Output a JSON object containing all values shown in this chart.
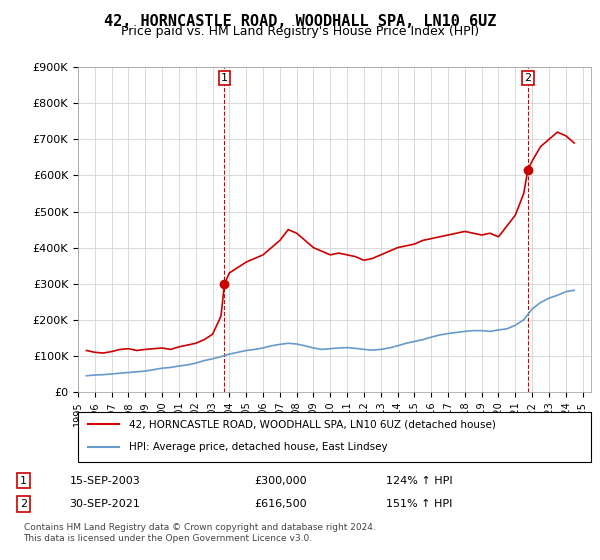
{
  "title": "42, HORNCASTLE ROAD, WOODHALL SPA, LN10 6UZ",
  "subtitle": "Price paid vs. HM Land Registry's House Price Index (HPI)",
  "legend_label_red": "42, HORNCASTLE ROAD, WOODHALL SPA, LN10 6UZ (detached house)",
  "legend_label_blue": "HPI: Average price, detached house, East Lindsey",
  "annotation1_box": "1",
  "annotation1_date": "15-SEP-2003",
  "annotation1_price": "£300,000",
  "annotation1_hpi": "124% ↑ HPI",
  "annotation2_box": "2",
  "annotation2_date": "30-SEP-2021",
  "annotation2_price": "£616,500",
  "annotation2_hpi": "151% ↑ HPI",
  "footnote": "Contains HM Land Registry data © Crown copyright and database right 2024.\nThis data is licensed under the Open Government Licence v3.0.",
  "ylim": [
    0,
    900000
  ],
  "yticks": [
    0,
    100000,
    200000,
    300000,
    400000,
    500000,
    600000,
    700000,
    800000,
    900000
  ],
  "red_color": "#cc0000",
  "blue_color": "#6699cc",
  "vline_color": "#cc0000",
  "background_color": "#ffffff",
  "grid_color": "#cccccc",
  "purchase1_year": 2003.71,
  "purchase1_value": 300000,
  "purchase2_year": 2021.75,
  "purchase2_value": 616500,
  "red_x": [
    1995.5,
    1996.0,
    1996.5,
    1997.0,
    1997.5,
    1998.0,
    1998.5,
    1999.0,
    1999.5,
    2000.0,
    2000.5,
    2001.0,
    2001.5,
    2002.0,
    2002.5,
    2003.0,
    2003.5,
    2003.71,
    2004.0,
    2004.5,
    2005.0,
    2005.5,
    2006.0,
    2006.5,
    2007.0,
    2007.5,
    2008.0,
    2008.5,
    2009.0,
    2009.5,
    2010.0,
    2010.5,
    2011.0,
    2011.5,
    2012.0,
    2012.5,
    2013.0,
    2013.5,
    2014.0,
    2014.5,
    2015.0,
    2015.5,
    2016.0,
    2016.5,
    2017.0,
    2017.5,
    2018.0,
    2018.5,
    2019.0,
    2019.5,
    2020.0,
    2020.5,
    2021.0,
    2021.5,
    2021.75,
    2022.0,
    2022.5,
    2023.0,
    2023.5,
    2024.0,
    2024.5
  ],
  "red_y": [
    115000,
    110000,
    108000,
    112000,
    118000,
    120000,
    115000,
    118000,
    120000,
    122000,
    118000,
    125000,
    130000,
    135000,
    145000,
    160000,
    210000,
    300000,
    330000,
    345000,
    360000,
    370000,
    380000,
    400000,
    420000,
    450000,
    440000,
    420000,
    400000,
    390000,
    380000,
    385000,
    380000,
    375000,
    365000,
    370000,
    380000,
    390000,
    400000,
    405000,
    410000,
    420000,
    425000,
    430000,
    435000,
    440000,
    445000,
    440000,
    435000,
    440000,
    430000,
    460000,
    490000,
    550000,
    616500,
    640000,
    680000,
    700000,
    720000,
    710000,
    690000
  ],
  "blue_x": [
    1995.5,
    1996.0,
    1996.5,
    1997.0,
    1997.5,
    1998.0,
    1998.5,
    1999.0,
    1999.5,
    2000.0,
    2000.5,
    2001.0,
    2001.5,
    2002.0,
    2002.5,
    2003.0,
    2003.5,
    2004.0,
    2004.5,
    2005.0,
    2005.5,
    2006.0,
    2006.5,
    2007.0,
    2007.5,
    2008.0,
    2008.5,
    2009.0,
    2009.5,
    2010.0,
    2010.5,
    2011.0,
    2011.5,
    2012.0,
    2012.5,
    2013.0,
    2013.5,
    2014.0,
    2014.5,
    2015.0,
    2015.5,
    2016.0,
    2016.5,
    2017.0,
    2017.5,
    2018.0,
    2018.5,
    2019.0,
    2019.5,
    2020.0,
    2020.5,
    2021.0,
    2021.5,
    2022.0,
    2022.5,
    2023.0,
    2023.5,
    2024.0,
    2024.5
  ],
  "blue_y": [
    45000,
    47000,
    48000,
    50000,
    52000,
    54000,
    56000,
    58000,
    62000,
    66000,
    68000,
    72000,
    75000,
    80000,
    87000,
    92000,
    98000,
    105000,
    110000,
    115000,
    118000,
    122000,
    128000,
    132000,
    135000,
    133000,
    128000,
    122000,
    118000,
    120000,
    122000,
    123000,
    121000,
    118000,
    116000,
    118000,
    122000,
    128000,
    135000,
    140000,
    145000,
    152000,
    158000,
    162000,
    165000,
    168000,
    170000,
    170000,
    168000,
    172000,
    175000,
    185000,
    200000,
    230000,
    248000,
    260000,
    268000,
    278000,
    282000
  ]
}
